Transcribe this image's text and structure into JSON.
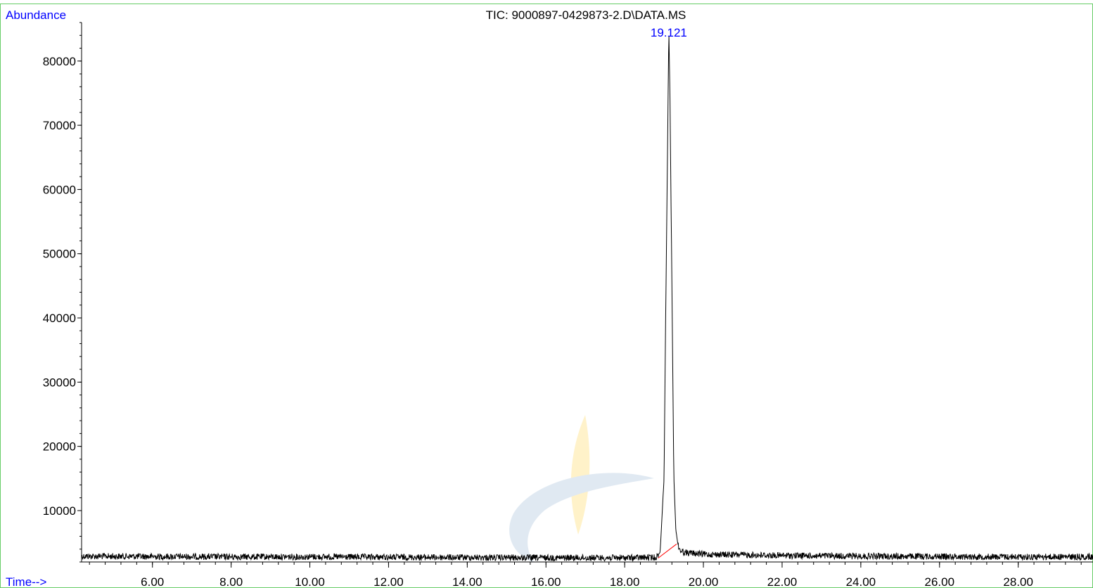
{
  "title": "TIC: 9000897-0429873-2.D\\DATA.MS",
  "y_axis_label": "Abundance",
  "x_axis_label": "Time-->",
  "peak_label": "19.121",
  "colors": {
    "axis_labels": "#0000ff",
    "trace": "#000000",
    "baseline_marker": "#ff0000",
    "frame_border": "#66cc66",
    "watermark_yellow": "#fff1c4",
    "watermark_blue": "#dde7f1"
  },
  "chart_data": {
    "type": "line",
    "title": "TIC: 9000897-0429873-2.D\\DATA.MS",
    "xlabel": "Time-->",
    "ylabel": "Abundance",
    "xlim": [
      4.2,
      29.9
    ],
    "ylim": [
      2000,
      86000
    ],
    "x_ticks": [
      "6.00",
      "8.00",
      "10.00",
      "12.00",
      "14.00",
      "16.00",
      "18.00",
      "20.00",
      "22.00",
      "24.00",
      "26.00",
      "28.00"
    ],
    "x_tick_values": [
      6,
      8,
      10,
      12,
      14,
      16,
      18,
      20,
      22,
      24,
      26,
      28
    ],
    "y_ticks": [
      "10000",
      "20000",
      "30000",
      "40000",
      "50000",
      "60000",
      "70000",
      "80000"
    ],
    "y_tick_values": [
      10000,
      20000,
      30000,
      40000,
      50000,
      60000,
      70000,
      80000
    ],
    "series": [
      {
        "x": [
          4.2,
          6.0,
          8.0,
          10.0,
          12.0,
          14.0,
          16.0,
          18.0,
          18.8,
          18.9,
          19.0,
          19.05,
          19.1,
          19.121,
          19.15,
          19.2,
          19.25,
          19.3,
          19.35,
          19.4,
          19.5,
          20.0,
          22.0,
          24.0,
          26.0,
          28.0,
          29.9
        ],
        "y": [
          2900,
          2850,
          2800,
          2800,
          2750,
          2700,
          2650,
          2650,
          2700,
          3500,
          15000,
          45000,
          72000,
          85000,
          75000,
          45000,
          15000,
          7000,
          4800,
          3900,
          3500,
          3200,
          3000,
          2900,
          2850,
          2800,
          2800
        ]
      }
    ],
    "baseline": {
      "x": [
        18.85,
        19.32
      ],
      "y": [
        2600,
        4800
      ]
    },
    "peak_annotation": {
      "x": 19.121,
      "label": "19.121"
    },
    "grid": false
  }
}
